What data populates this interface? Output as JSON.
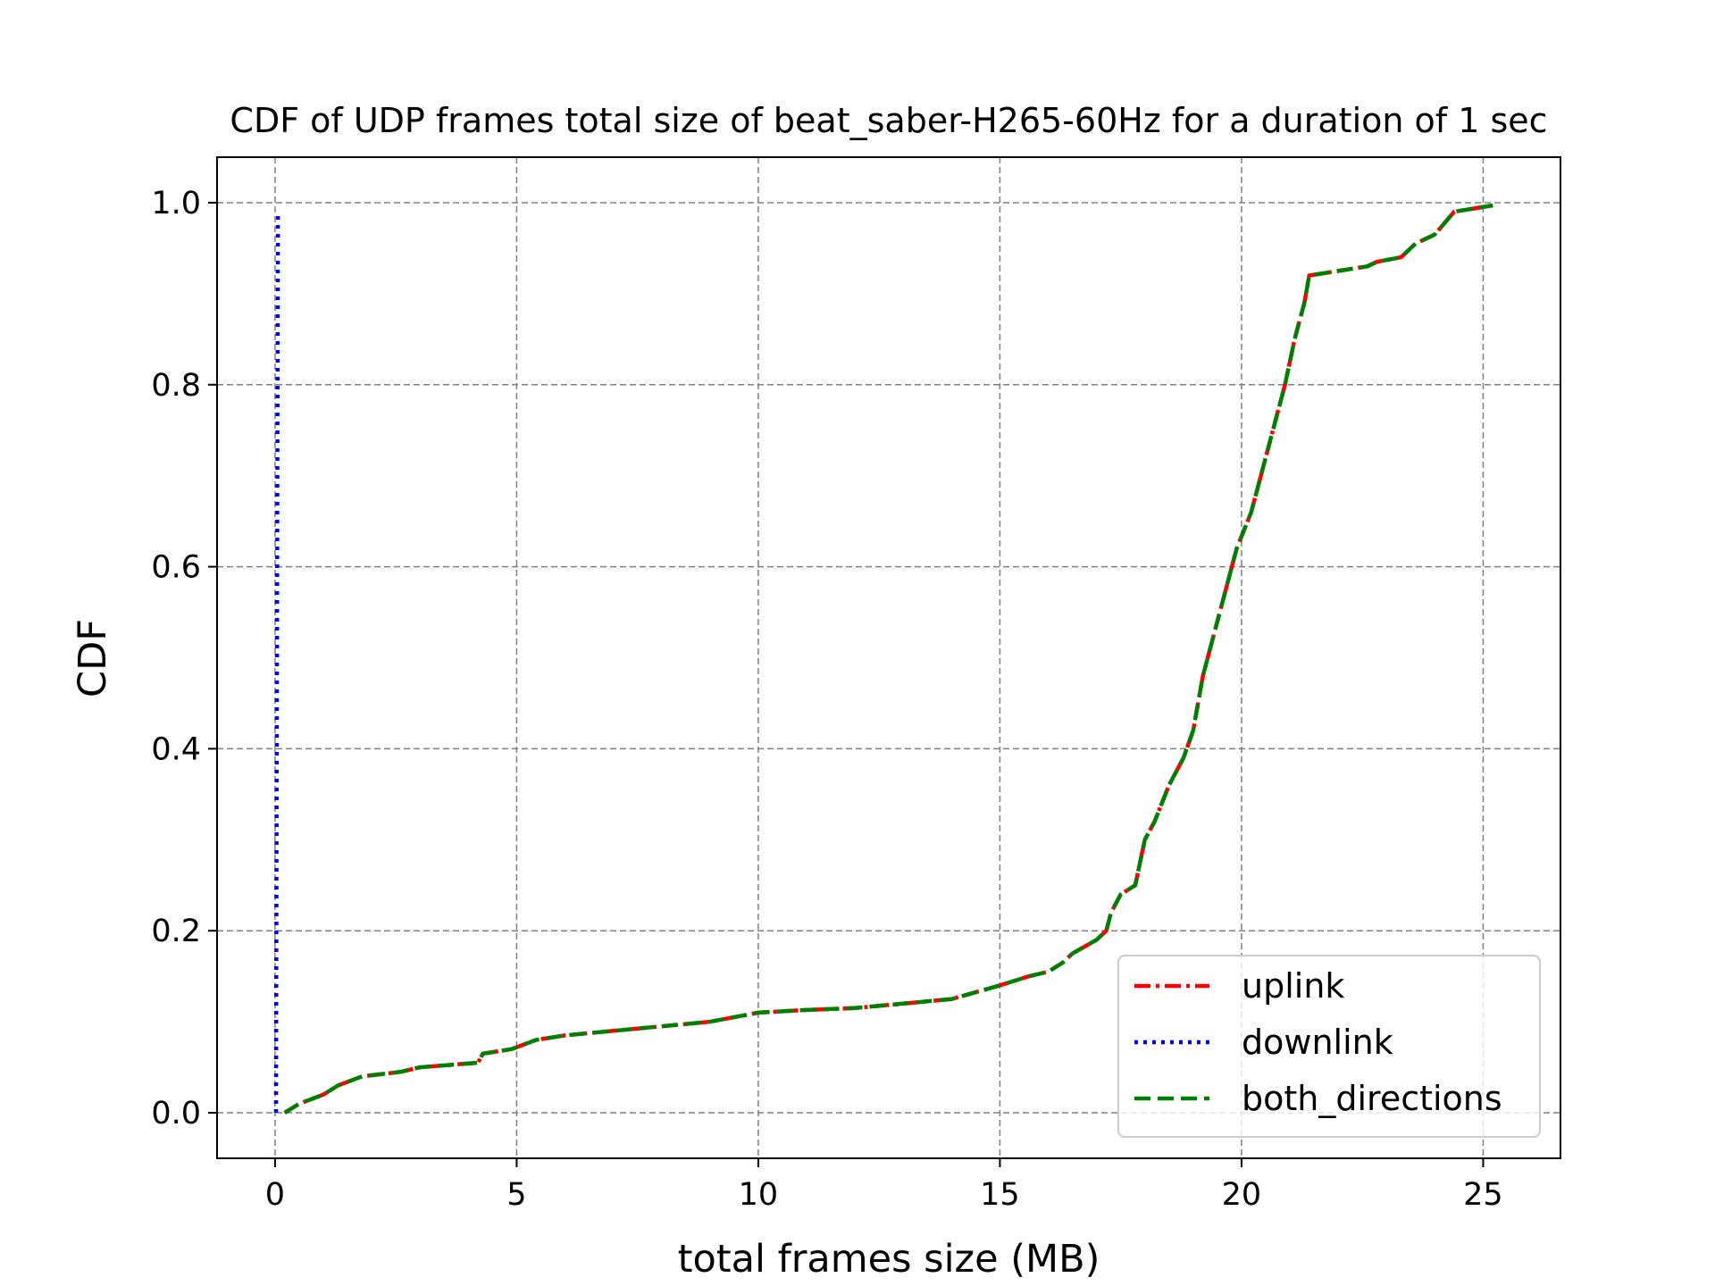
{
  "chart_data": {
    "type": "line",
    "title": "CDF of UDP frames total size of beat_saber-H265-60Hz for a duration of 1 sec",
    "xlabel": "total frames size (MB)",
    "ylabel": "CDF",
    "xlim": [
      -1.2,
      26.6
    ],
    "ylim": [
      -0.05,
      1.05
    ],
    "xticks": [
      0,
      5,
      10,
      15,
      20,
      25
    ],
    "yticks": [
      0.0,
      0.2,
      0.4,
      0.6,
      0.8,
      1.0
    ],
    "xtick_labels": [
      "0",
      "5",
      "10",
      "15",
      "20",
      "25"
    ],
    "ytick_labels": [
      "0.0",
      "0.2",
      "0.4",
      "0.6",
      "0.8",
      "1.0"
    ],
    "grid": true,
    "legend_position": "lower-right",
    "series": [
      {
        "name": "uplink",
        "color": "#ff0000",
        "style": "dashdot",
        "x": [
          0.2,
          0.5,
          1.0,
          1.3,
          1.8,
          2.6,
          3.0,
          4.2,
          4.3,
          4.9,
          5.4,
          6.0,
          7.0,
          8.0,
          9.0,
          10.0,
          11.0,
          12.0,
          13.0,
          14.0,
          15.0,
          15.6,
          16.0,
          16.3,
          16.5,
          17.0,
          17.2,
          17.3,
          17.5,
          17.8,
          18.0,
          18.2,
          18.5,
          18.8,
          19.0,
          19.2,
          19.4,
          19.7,
          19.9,
          20.2,
          20.4,
          20.7,
          20.9,
          21.1,
          21.3,
          21.4,
          22.0,
          22.6,
          22.8,
          23.3,
          23.6,
          24.0,
          24.4,
          25.2
        ],
        "y": [
          0.0,
          0.01,
          0.02,
          0.03,
          0.04,
          0.045,
          0.05,
          0.055,
          0.065,
          0.07,
          0.08,
          0.085,
          0.09,
          0.095,
          0.1,
          0.11,
          0.113,
          0.115,
          0.12,
          0.125,
          0.14,
          0.15,
          0.155,
          0.165,
          0.175,
          0.19,
          0.2,
          0.22,
          0.24,
          0.25,
          0.3,
          0.32,
          0.36,
          0.39,
          0.42,
          0.48,
          0.52,
          0.58,
          0.62,
          0.66,
          0.7,
          0.76,
          0.8,
          0.85,
          0.89,
          0.92,
          0.925,
          0.93,
          0.935,
          0.94,
          0.955,
          0.965,
          0.99,
          0.997
        ]
      },
      {
        "name": "downlink",
        "color": "#0000ff",
        "style": "dotted",
        "x": [
          0.02,
          0.03,
          0.04,
          0.05,
          0.06
        ],
        "y": [
          0.0,
          0.25,
          0.5,
          0.75,
          0.99
        ]
      },
      {
        "name": "both_directions",
        "color": "#008000",
        "style": "dashed",
        "x": [
          0.2,
          0.5,
          1.0,
          1.3,
          1.8,
          2.6,
          3.0,
          4.2,
          4.3,
          4.9,
          5.4,
          6.0,
          7.0,
          8.0,
          9.0,
          10.0,
          11.0,
          12.0,
          13.0,
          14.0,
          15.0,
          15.6,
          16.0,
          16.3,
          16.5,
          17.0,
          17.2,
          17.3,
          17.5,
          17.8,
          18.0,
          18.2,
          18.5,
          18.8,
          19.0,
          19.2,
          19.4,
          19.7,
          19.9,
          20.2,
          20.4,
          20.7,
          20.9,
          21.1,
          21.3,
          21.4,
          22.0,
          22.6,
          22.8,
          23.3,
          23.6,
          24.0,
          24.4,
          25.2
        ],
        "y": [
          0.0,
          0.01,
          0.02,
          0.03,
          0.04,
          0.045,
          0.05,
          0.055,
          0.065,
          0.07,
          0.08,
          0.085,
          0.09,
          0.095,
          0.1,
          0.11,
          0.113,
          0.115,
          0.12,
          0.125,
          0.14,
          0.15,
          0.155,
          0.165,
          0.175,
          0.19,
          0.2,
          0.22,
          0.24,
          0.25,
          0.3,
          0.32,
          0.36,
          0.39,
          0.42,
          0.48,
          0.52,
          0.58,
          0.62,
          0.66,
          0.7,
          0.76,
          0.8,
          0.85,
          0.89,
          0.92,
          0.925,
          0.93,
          0.935,
          0.94,
          0.955,
          0.965,
          0.99,
          0.997
        ]
      }
    ]
  }
}
